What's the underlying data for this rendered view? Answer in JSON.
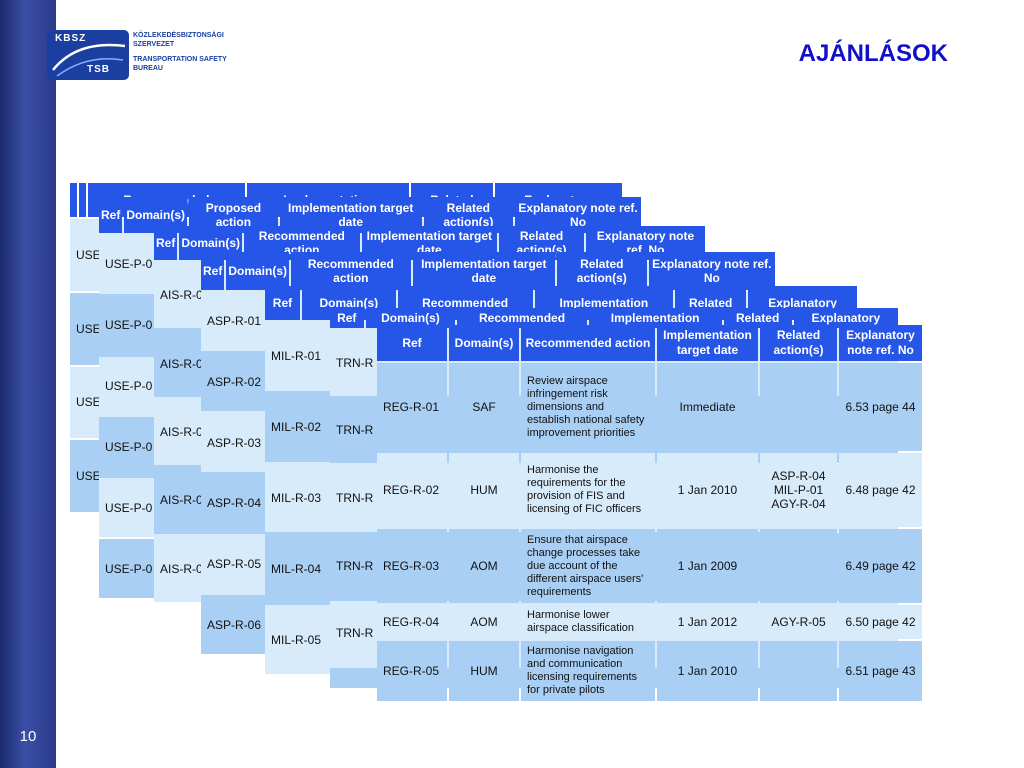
{
  "slide": {
    "number": "10",
    "title": "AJÁNLÁSOK"
  },
  "logo": {
    "abbr_top": "KBSZ",
    "abbr_bottom": "TSB",
    "org_hu_1": "KÖZLEKEDÉSBIZTONSÁGI",
    "org_hu_2": "SZERVEZET",
    "org_en_1": "TRANSPORTATION SAFETY",
    "org_en_2": "BUREAU"
  },
  "back_cards": [
    {
      "headers": [
        "",
        "",
        "Recommended",
        "Implementation",
        "Related",
        "Explanatory"
      ],
      "rows": [
        "USE",
        "USE",
        "USE",
        "USE"
      ]
    },
    {
      "headers": [
        "Ref",
        "Domain(s)",
        "Proposed action",
        "Implementation target date",
        "Related action(s)",
        "Explanatory note ref. No"
      ],
      "rows": [
        "USE-P-0",
        "USE-P-0",
        "USE-P-0",
        "USE-P-0",
        "USE-P-0",
        "USE-P-0"
      ]
    },
    {
      "headers": [
        "Ref",
        "Domain(s)",
        "Recommended action",
        "Implementation target date",
        "Related action(s)",
        "Explanatory note ref. No"
      ],
      "rows": [
        "AIS-R-0",
        "AIS-R-0",
        "AIS-R-0",
        "AIS-R-0",
        "AIS-R-0"
      ]
    },
    {
      "headers": [
        "Ref",
        "Domain(s)",
        "Recommended action",
        "Implementation target date",
        "Related action(s)",
        "Explanatory note ref. No"
      ],
      "rows": [
        "ASP-R-01",
        "ASP-R-02",
        "ASP-R-03",
        "ASP-R-04",
        "ASP-R-05",
        "ASP-R-06"
      ]
    },
    {
      "headers": [
        "Ref",
        "Domain(s)",
        "Recommended",
        "Implementation",
        "Related",
        "Explanatory"
      ],
      "rows": [
        "MIL-R-01",
        "MIL-R-02",
        "MIL-R-03",
        "MIL-R-04",
        "MIL-R-05"
      ]
    },
    {
      "headers": [
        "Ref",
        "Domain(s)",
        "Recommended",
        "Implementation",
        "Related",
        "Explanatory"
      ],
      "rows": [
        "TRN-R",
        "TRN-R",
        "TRN-R",
        "TRN-R",
        "TRN-R",
        ""
      ]
    }
  ],
  "front_table": {
    "headers": [
      "Ref",
      "Domain(s)",
      "Recommended action",
      "Implementation target date",
      "Related action(s)",
      "Explanatory note ref. No"
    ],
    "rows": [
      {
        "ref": "REG-R-01",
        "domain": "SAF",
        "action": "Review airspace infringement risk dimensions and establish national safety improvement priorities",
        "target": "Immediate",
        "related": "",
        "note": "6.53 page 44"
      },
      {
        "ref": "REG-R-02",
        "domain": "HUM",
        "action": "Harmonise the requirements for the provision of FIS and licensing of FIC officers",
        "target": "1 Jan 2010",
        "related": "ASP-R-04 MIL-P-01 AGY-R-04",
        "note": "6.48 page 42"
      },
      {
        "ref": "REG-R-03",
        "domain": "AOM",
        "action": "Ensure that airspace change processes take due account of the different airspace users' requirements",
        "target": "1 Jan 2009",
        "related": "",
        "note": "6.49 page 42"
      },
      {
        "ref": "REG-R-04",
        "domain": "AOM",
        "action": "Harmonise lower airspace classification",
        "target": "1 Jan 2012",
        "related": "AGY-R-05",
        "note": "6.50 page 42"
      },
      {
        "ref": "REG-R-05",
        "domain": "HUM",
        "action": "Harmonise navigation and communication licensing requirements for private pilots",
        "target": "1 Jan 2010",
        "related": "",
        "note": "6.51 page 43"
      }
    ]
  }
}
